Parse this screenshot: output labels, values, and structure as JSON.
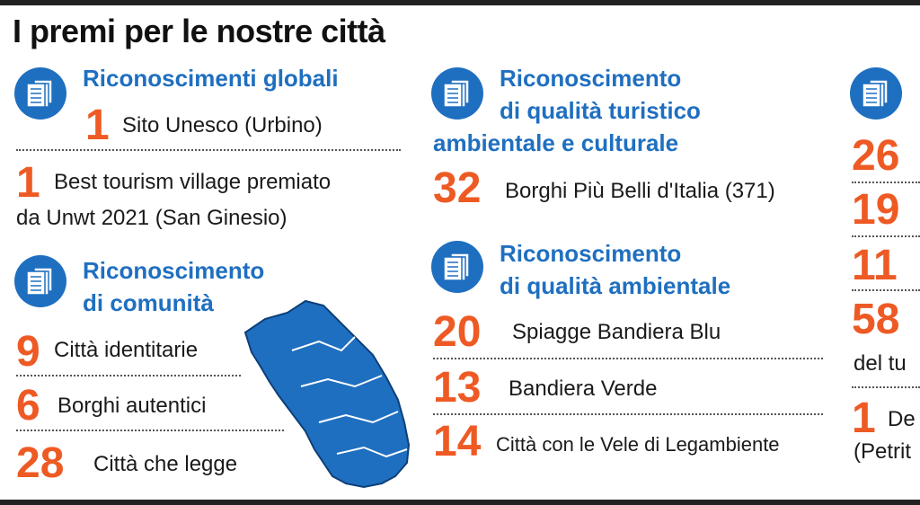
{
  "title": "I premi per le nostre città",
  "colors": {
    "accent_blue": "#1f6fc0",
    "accent_orange": "#ee5a24",
    "text": "#1a1a1a"
  },
  "icon_name": "documents-icon",
  "col1": {
    "section1": {
      "title": "Riconoscimenti globali",
      "items": [
        {
          "num": "1",
          "text": "Sito Unesco (Urbino)"
        },
        {
          "num": "1",
          "text_line1": "Best tourism village premiato",
          "text_line2": "da Unwt 2021 (San Ginesio)"
        }
      ]
    },
    "section2": {
      "title_line1": "Riconoscimento",
      "title_line2": "di comunità",
      "items": [
        {
          "num": "9",
          "text": "Città identitarie"
        },
        {
          "num": "6",
          "text": "Borghi autentici"
        },
        {
          "num": "28",
          "text": "Città che legge"
        }
      ]
    }
  },
  "col2": {
    "section1": {
      "title_line1": "Riconoscimento",
      "title_line2": "di qualità turistico",
      "title_line3": "ambientale e culturale",
      "items": [
        {
          "num": "32",
          "text": "Borghi Più Belli d'Italia (371)"
        }
      ]
    },
    "section2": {
      "title_line1": "Riconoscimento",
      "title_line2": "di qualità ambientale",
      "items": [
        {
          "num": "20",
          "text": "Spiagge Bandiera Blu"
        },
        {
          "num": "13",
          "text": "Bandiera Verde"
        },
        {
          "num": "14",
          "text": "Città con le Vele di Legambiente"
        }
      ]
    }
  },
  "col3": {
    "nums": [
      "26",
      "19",
      "11",
      "58",
      "1"
    ],
    "text_fragment1": "del tu",
    "text_fragment2": "De",
    "text_fragment3": "(Petrit"
  }
}
